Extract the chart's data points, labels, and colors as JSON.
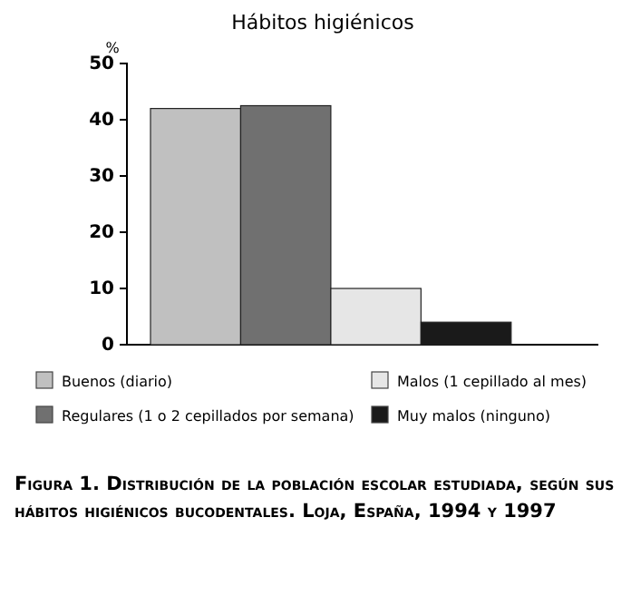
{
  "chart_data": {
    "type": "bar",
    "title": "Hábitos higiénicos",
    "ylabel": "%",
    "categories": [
      null
    ],
    "series": [
      {
        "name": "Buenos (diario)",
        "color": "#c0c0c0",
        "values": [
          42
        ]
      },
      {
        "name": "Regulares (1 o 2 cepillados por semana)",
        "color": "#707070",
        "values": [
          42.5
        ]
      },
      {
        "name": "Malos (1 cepillado al mes)",
        "color": "#e6e6e6",
        "values": [
          10
        ]
      },
      {
        "name": "Muy malos (ninguno)",
        "color": "#1a1a1a",
        "values": [
          4
        ]
      }
    ],
    "ylim": [
      0,
      50
    ],
    "yticks": [
      0,
      10,
      20,
      30,
      40,
      50
    ],
    "grid": false,
    "legend": "bottom",
    "annotations": [
      "Figura 1. Distribución de la población escolar estudiada, según sus hábitos higiénicos bucodentales. Loja, España, 1994 y 1997"
    ]
  }
}
